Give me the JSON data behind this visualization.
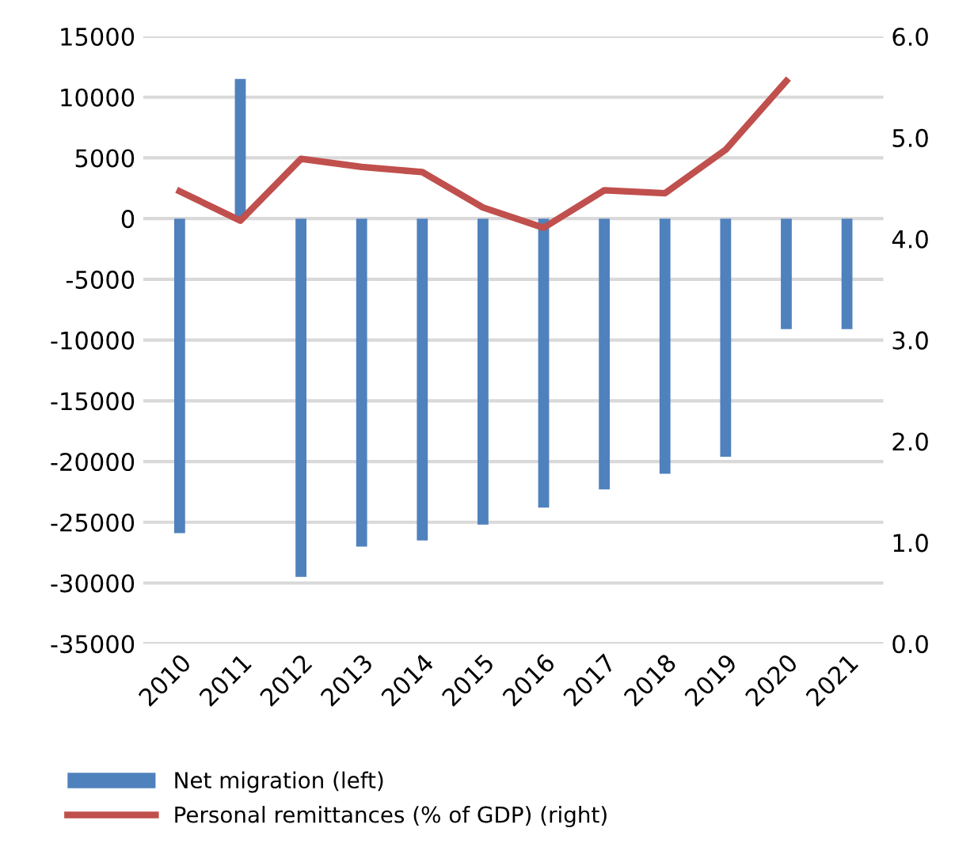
{
  "chart_data": {
    "type": "bar",
    "categories": [
      "2010",
      "2011",
      "2012",
      "2013",
      "2014",
      "2015",
      "2016",
      "2017",
      "2018",
      "2019",
      "2020",
      "2021"
    ],
    "series": [
      {
        "name": "Net migration (left)",
        "color": "#4f81bd",
        "values": [
          -25900,
          11500,
          -29500,
          -27000,
          -26500,
          -25200,
          -23800,
          -22300,
          -21000,
          -19600,
          -9100,
          -9100
        ]
      },
      {
        "name": "Personal remittances (% of GDP) (right)",
        "type": "line",
        "axis": "y2",
        "color": "#c0504d",
        "values": [
          4.47,
          4.18,
          4.79,
          4.71,
          4.66,
          4.31,
          4.11,
          4.48,
          4.45,
          4.88,
          5.56,
          null
        ]
      }
    ],
    "ylim": [
      -35000,
      15000
    ],
    "yticks": [
      -35000,
      -30000,
      -25000,
      -20000,
      -15000,
      -10000,
      -5000,
      0,
      5000,
      10000,
      15000
    ],
    "y2lim": [
      0,
      6
    ],
    "y2ticks": [
      {
        "value": 0,
        "label": "0.0"
      },
      {
        "value": 1,
        "label": "1.0"
      },
      {
        "value": 2,
        "label": "2.0"
      },
      {
        "value": 3,
        "label": "3.0"
      },
      {
        "value": 4,
        "label": "4.0"
      },
      {
        "value": 5,
        "label": "5.0"
      },
      {
        "value": 6,
        "label": "6.0"
      }
    ],
    "grid": "y",
    "legend": "bottom",
    "marker": "none",
    "line_style": "solid"
  }
}
